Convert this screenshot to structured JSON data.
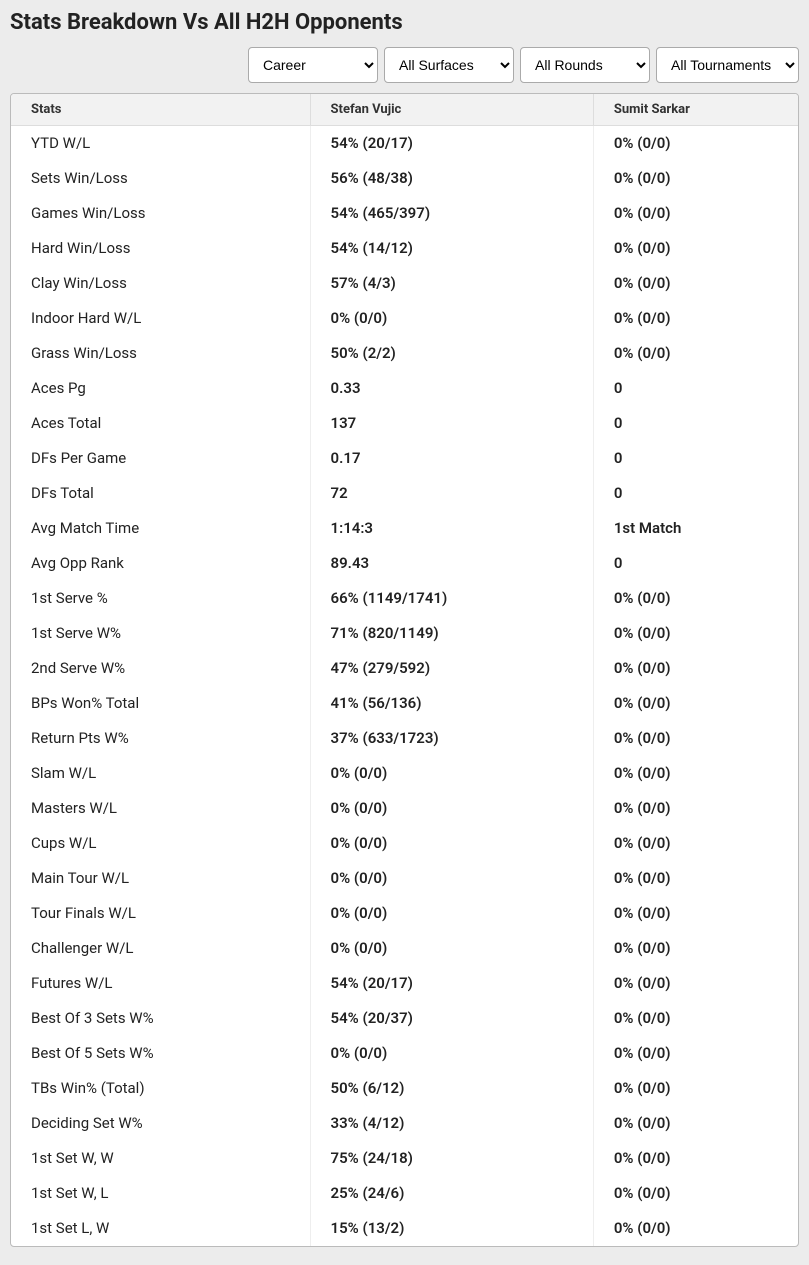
{
  "page": {
    "title": "Stats Breakdown Vs All H2H Opponents"
  },
  "filters": {
    "period": {
      "selected": "Career"
    },
    "surface": {
      "selected": "All Surfaces"
    },
    "round": {
      "selected": "All Rounds"
    },
    "tournament": {
      "selected": "All Tournaments"
    }
  },
  "table": {
    "columns": {
      "stats": "Stats",
      "player1": "Stefan Vujic",
      "player2": "Sumit Sarkar"
    },
    "col_widths": {
      "stats": "38%",
      "player1": "36%",
      "player2": "26%"
    },
    "rows": [
      {
        "label": "YTD W/L",
        "p1": "54% (20/17)",
        "p2": "0% (0/0)"
      },
      {
        "label": "Sets Win/Loss",
        "p1": "56% (48/38)",
        "p2": "0% (0/0)"
      },
      {
        "label": "Games Win/Loss",
        "p1": "54% (465/397)",
        "p2": "0% (0/0)"
      },
      {
        "label": "Hard Win/Loss",
        "p1": "54% (14/12)",
        "p2": "0% (0/0)"
      },
      {
        "label": "Clay Win/Loss",
        "p1": "57% (4/3)",
        "p2": "0% (0/0)"
      },
      {
        "label": "Indoor Hard W/L",
        "p1": "0% (0/0)",
        "p2": "0% (0/0)"
      },
      {
        "label": "Grass Win/Loss",
        "p1": "50% (2/2)",
        "p2": "0% (0/0)"
      },
      {
        "label": "Aces Pg",
        "p1": "0.33",
        "p2": "0"
      },
      {
        "label": "Aces Total",
        "p1": "137",
        "p2": "0"
      },
      {
        "label": "DFs Per Game",
        "p1": "0.17",
        "p2": "0"
      },
      {
        "label": "DFs Total",
        "p1": "72",
        "p2": "0"
      },
      {
        "label": "Avg Match Time",
        "p1": "1:14:3",
        "p2": "1st Match"
      },
      {
        "label": "Avg Opp Rank",
        "p1": "89.43",
        "p2": "0"
      },
      {
        "label": "1st Serve %",
        "p1": "66% (1149/1741)",
        "p2": "0% (0/0)"
      },
      {
        "label": "1st Serve W%",
        "p1": "71% (820/1149)",
        "p2": "0% (0/0)"
      },
      {
        "label": "2nd Serve W%",
        "p1": "47% (279/592)",
        "p2": "0% (0/0)"
      },
      {
        "label": "BPs Won% Total",
        "p1": "41% (56/136)",
        "p2": "0% (0/0)"
      },
      {
        "label": "Return Pts W%",
        "p1": "37% (633/1723)",
        "p2": "0% (0/0)"
      },
      {
        "label": "Slam W/L",
        "p1": "0% (0/0)",
        "p2": "0% (0/0)"
      },
      {
        "label": "Masters W/L",
        "p1": "0% (0/0)",
        "p2": "0% (0/0)"
      },
      {
        "label": "Cups W/L",
        "p1": "0% (0/0)",
        "p2": "0% (0/0)"
      },
      {
        "label": "Main Tour W/L",
        "p1": "0% (0/0)",
        "p2": "0% (0/0)"
      },
      {
        "label": "Tour Finals W/L",
        "p1": "0% (0/0)",
        "p2": "0% (0/0)"
      },
      {
        "label": "Challenger W/L",
        "p1": "0% (0/0)",
        "p2": "0% (0/0)"
      },
      {
        "label": "Futures W/L",
        "p1": "54% (20/17)",
        "p2": "0% (0/0)"
      },
      {
        "label": "Best Of 3 Sets W%",
        "p1": "54% (20/37)",
        "p2": "0% (0/0)"
      },
      {
        "label": "Best Of 5 Sets W%",
        "p1": "0% (0/0)",
        "p2": "0% (0/0)"
      },
      {
        "label": "TBs Win% (Total)",
        "p1": "50% (6/12)",
        "p2": "0% (0/0)"
      },
      {
        "label": "Deciding Set W%",
        "p1": "33% (4/12)",
        "p2": "0% (0/0)"
      },
      {
        "label": "1st Set W, W",
        "p1": "75% (24/18)",
        "p2": "0% (0/0)"
      },
      {
        "label": "1st Set W, L",
        "p1": "25% (24/6)",
        "p2": "0% (0/0)"
      },
      {
        "label": "1st Set L, W",
        "p1": "15% (13/2)",
        "p2": "0% (0/0)"
      }
    ]
  }
}
